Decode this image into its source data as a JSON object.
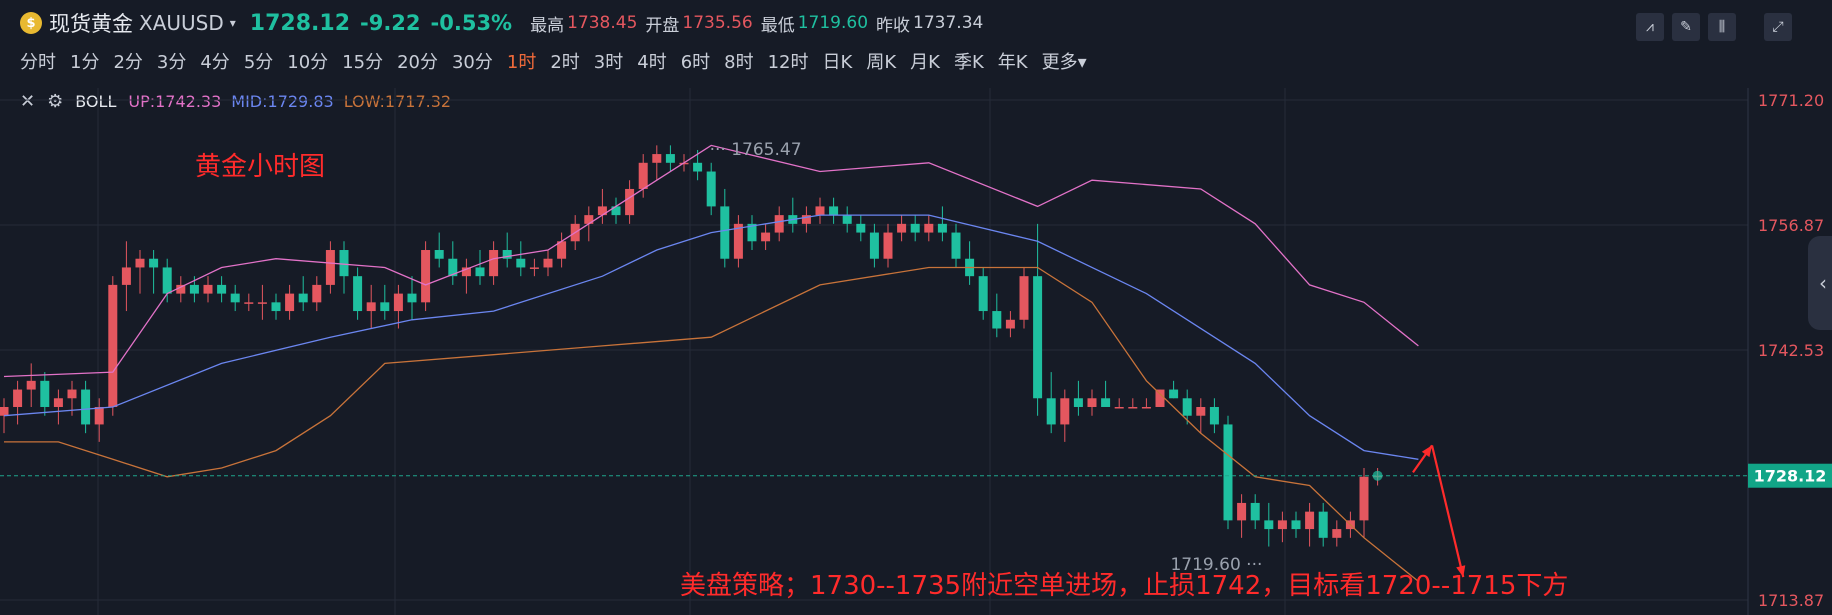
{
  "header": {
    "coin_symbol": "$",
    "title": "现货黄金",
    "symbol": "XAUUSD",
    "caret": "▾",
    "price": "1728.12",
    "change": "-9.22",
    "change_pct": "-0.53%",
    "high_label": "最高",
    "high": "1738.45",
    "open_label": "开盘",
    "open": "1735.56",
    "low_label": "最低",
    "low": "1719.60",
    "prev_label": "昨收",
    "prev": "1737.34"
  },
  "toolbar": {
    "icons": [
      "chart-tools-icon",
      "draw-pen-icon",
      "candle-style-icon",
      "fullscreen-icon"
    ],
    "glyphs": [
      "⩘",
      "✎",
      "⫼",
      "⤢"
    ]
  },
  "timeframes": [
    {
      "label": "分时",
      "active": false
    },
    {
      "label": "1分",
      "active": false
    },
    {
      "label": "2分",
      "active": false
    },
    {
      "label": "3分",
      "active": false
    },
    {
      "label": "4分",
      "active": false
    },
    {
      "label": "5分",
      "active": false
    },
    {
      "label": "10分",
      "active": false
    },
    {
      "label": "15分",
      "active": false
    },
    {
      "label": "20分",
      "active": false
    },
    {
      "label": "30分",
      "active": false
    },
    {
      "label": "1时",
      "active": true
    },
    {
      "label": "2时",
      "active": false
    },
    {
      "label": "3时",
      "active": false
    },
    {
      "label": "4时",
      "active": false
    },
    {
      "label": "6时",
      "active": false
    },
    {
      "label": "8时",
      "active": false
    },
    {
      "label": "12时",
      "active": false
    },
    {
      "label": "日K",
      "active": false
    },
    {
      "label": "周K",
      "active": false
    },
    {
      "label": "月K",
      "active": false
    },
    {
      "label": "季K",
      "active": false
    },
    {
      "label": "年K",
      "active": false
    },
    {
      "label": "更多▾",
      "active": false
    }
  ],
  "indicator": {
    "close": "✕",
    "settings": "⚙",
    "name": "BOLL",
    "up": "UP:1742.33",
    "mid": "MID:1729.83",
    "low": "LOW:1717.32",
    "colors": {
      "up": "#e272c8",
      "mid": "#6b86f0",
      "low": "#c8733a"
    }
  },
  "annotations": {
    "title": "黄金小时图",
    "strategy": "美盘策略；1730--1735附近空单进场，止损1742，目标看1720--1715下方"
  },
  "side_tab": "‹",
  "chart_data": {
    "type": "candlestick",
    "yticks": [
      "1771.20",
      "1756.87",
      "1742.53",
      "1728.12",
      "1713.87"
    ],
    "y_range": [
      1713.87,
      1771.2
    ],
    "current_price": "1728.12",
    "max_label": "1765.47",
    "min_label": "1719.60",
    "colors": {
      "up": "#e4575f",
      "down": "#1fc0a0"
    },
    "candles": [
      [
        1735,
        1737,
        1733,
        1736
      ],
      [
        1736,
        1739,
        1734,
        1738
      ],
      [
        1738,
        1741,
        1736,
        1739
      ],
      [
        1739,
        1740,
        1735,
        1736
      ],
      [
        1736,
        1738,
        1734,
        1737
      ],
      [
        1737,
        1739,
        1735,
        1738
      ],
      [
        1738,
        1739,
        1733,
        1734
      ],
      [
        1734,
        1737,
        1732,
        1736
      ],
      [
        1736,
        1751,
        1735,
        1750
      ],
      [
        1750,
        1755,
        1747,
        1752
      ],
      [
        1752,
        1754,
        1749,
        1753
      ],
      [
        1753,
        1754,
        1749,
        1752
      ],
      [
        1752,
        1753,
        1748,
        1749
      ],
      [
        1749,
        1751,
        1748,
        1750
      ],
      [
        1750,
        1751,
        1748,
        1749
      ],
      [
        1749,
        1751,
        1748,
        1750
      ],
      [
        1750,
        1751,
        1748,
        1749
      ],
      [
        1749,
        1750,
        1747,
        1748
      ],
      [
        1748,
        1749,
        1747,
        1748
      ],
      [
        1748,
        1750,
        1746,
        1748
      ],
      [
        1748,
        1749,
        1746,
        1747
      ],
      [
        1747,
        1750,
        1746,
        1749
      ],
      [
        1749,
        1751,
        1747,
        1748
      ],
      [
        1748,
        1751,
        1747,
        1750
      ],
      [
        1750,
        1755,
        1749,
        1754
      ],
      [
        1754,
        1755,
        1749,
        1751
      ],
      [
        1751,
        1752,
        1746,
        1747
      ],
      [
        1747,
        1750,
        1745,
        1748
      ],
      [
        1748,
        1750,
        1746,
        1747
      ],
      [
        1747,
        1750,
        1745,
        1749
      ],
      [
        1749,
        1751,
        1746,
        1748
      ],
      [
        1748,
        1755,
        1747,
        1754
      ],
      [
        1754,
        1756,
        1752,
        1753
      ],
      [
        1753,
        1755,
        1750,
        1751
      ],
      [
        1751,
        1753,
        1749,
        1752
      ],
      [
        1752,
        1754,
        1750,
        1751
      ],
      [
        1751,
        1755,
        1750,
        1754
      ],
      [
        1754,
        1756,
        1752,
        1753
      ],
      [
        1753,
        1755,
        1751,
        1752
      ],
      [
        1752,
        1753,
        1751,
        1752
      ],
      [
        1752,
        1754,
        1751,
        1753
      ],
      [
        1753,
        1756,
        1752,
        1755
      ],
      [
        1755,
        1758,
        1754,
        1757
      ],
      [
        1757,
        1759,
        1755,
        1758
      ],
      [
        1758,
        1761,
        1757,
        1759
      ],
      [
        1759,
        1760,
        1757,
        1758
      ],
      [
        1758,
        1762,
        1757,
        1761
      ],
      [
        1761,
        1765,
        1760,
        1764
      ],
      [
        1764,
        1766,
        1762,
        1765
      ],
      [
        1765,
        1766,
        1763,
        1764
      ],
      [
        1764,
        1765,
        1763,
        1764
      ],
      [
        1764,
        1765.47,
        1762,
        1763
      ],
      [
        1763,
        1764,
        1758,
        1759
      ],
      [
        1759,
        1761,
        1752,
        1753
      ],
      [
        1753,
        1758,
        1752,
        1757
      ],
      [
        1757,
        1758,
        1754,
        1755
      ],
      [
        1755,
        1757,
        1754,
        1756
      ],
      [
        1756,
        1759,
        1755,
        1758
      ],
      [
        1758,
        1760,
        1756,
        1757
      ],
      [
        1757,
        1759,
        1756,
        1758
      ],
      [
        1758,
        1760,
        1757,
        1759
      ],
      [
        1759,
        1760,
        1757,
        1758
      ],
      [
        1758,
        1759,
        1756,
        1757
      ],
      [
        1757,
        1758,
        1755,
        1756
      ],
      [
        1756,
        1757,
        1752,
        1753
      ],
      [
        1753,
        1757,
        1752,
        1756
      ],
      [
        1756,
        1758,
        1755,
        1757
      ],
      [
        1757,
        1758,
        1755,
        1756
      ],
      [
        1756,
        1758,
        1755,
        1757
      ],
      [
        1757,
        1759,
        1755,
        1756
      ],
      [
        1756,
        1757,
        1752,
        1753
      ],
      [
        1753,
        1755,
        1750,
        1751
      ],
      [
        1751,
        1752,
        1746,
        1747
      ],
      [
        1747,
        1749,
        1744,
        1745
      ],
      [
        1745,
        1747,
        1744,
        1746
      ],
      [
        1746,
        1752,
        1745,
        1751
      ],
      [
        1751,
        1757,
        1735,
        1737
      ],
      [
        1737,
        1740,
        1733,
        1734
      ],
      [
        1734,
        1738,
        1732,
        1737
      ],
      [
        1737,
        1739,
        1735,
        1736
      ],
      [
        1736,
        1738,
        1735,
        1737
      ],
      [
        1737,
        1739,
        1736,
        1736
      ],
      [
        1736,
        1737,
        1736,
        1736
      ],
      [
        1736,
        1737,
        1736,
        1736
      ],
      [
        1736,
        1737,
        1736,
        1736
      ],
      [
        1736,
        1738,
        1736,
        1738
      ],
      [
        1738,
        1739,
        1737,
        1737
      ],
      [
        1737,
        1738,
        1734,
        1735
      ],
      [
        1735,
        1737,
        1733,
        1736
      ],
      [
        1736,
        1737,
        1733,
        1734
      ],
      [
        1734,
        1735,
        1722,
        1723
      ],
      [
        1723,
        1726,
        1721,
        1725
      ],
      [
        1725,
        1726,
        1722,
        1723
      ],
      [
        1723,
        1725,
        1720,
        1722
      ],
      [
        1722,
        1724,
        1720.5,
        1723
      ],
      [
        1723,
        1724,
        1721,
        1722
      ],
      [
        1722,
        1725,
        1720,
        1724
      ],
      [
        1724,
        1725,
        1720,
        1721
      ],
      [
        1721,
        1723,
        1720,
        1722
      ],
      [
        1722,
        1724,
        1721,
        1723
      ],
      [
        1723,
        1729,
        1721,
        1728
      ],
      [
        1728,
        1729,
        1727,
        1728.12
      ]
    ],
    "boll_up": [
      [
        0,
        1739.5
      ],
      [
        8,
        1740
      ],
      [
        12,
        1749
      ],
      [
        16,
        1752
      ],
      [
        20,
        1753
      ],
      [
        28,
        1752
      ],
      [
        31,
        1750
      ],
      [
        36,
        1753
      ],
      [
        40,
        1754
      ],
      [
        44,
        1758
      ],
      [
        48,
        1762
      ],
      [
        52,
        1766
      ],
      [
        60,
        1763
      ],
      [
        68,
        1764
      ],
      [
        76,
        1759
      ],
      [
        80,
        1762
      ],
      [
        88,
        1761
      ],
      [
        92,
        1757
      ],
      [
        96,
        1750
      ],
      [
        100,
        1748
      ],
      [
        104,
        1743
      ]
    ],
    "boll_mid": [
      [
        0,
        1735
      ],
      [
        8,
        1736
      ],
      [
        16,
        1741
      ],
      [
        24,
        1744
      ],
      [
        30,
        1746
      ],
      [
        36,
        1747
      ],
      [
        44,
        1751
      ],
      [
        48,
        1754
      ],
      [
        52,
        1756
      ],
      [
        60,
        1758
      ],
      [
        68,
        1758
      ],
      [
        76,
        1755
      ],
      [
        84,
        1749
      ],
      [
        92,
        1741
      ],
      [
        96,
        1735
      ],
      [
        100,
        1731
      ],
      [
        104,
        1730
      ]
    ],
    "boll_low": [
      [
        0,
        1732
      ],
      [
        4,
        1732
      ],
      [
        8,
        1730
      ],
      [
        12,
        1728
      ],
      [
        16,
        1729
      ],
      [
        20,
        1731
      ],
      [
        24,
        1735
      ],
      [
        28,
        1741
      ],
      [
        36,
        1742
      ],
      [
        44,
        1743
      ],
      [
        52,
        1744
      ],
      [
        60,
        1750
      ],
      [
        68,
        1752
      ],
      [
        76,
        1752
      ],
      [
        80,
        1748
      ],
      [
        84,
        1739
      ],
      [
        88,
        1733
      ],
      [
        92,
        1728
      ],
      [
        96,
        1727
      ],
      [
        100,
        1721
      ],
      [
        104,
        1716
      ]
    ],
    "arrow_up": [
      [
        1728.5,
        103.6
      ],
      [
        1731.6,
        105
      ]
    ],
    "arrow_down": [
      [
        1731.6,
        105
      ],
      [
        1716.5,
        107.3
      ]
    ]
  }
}
